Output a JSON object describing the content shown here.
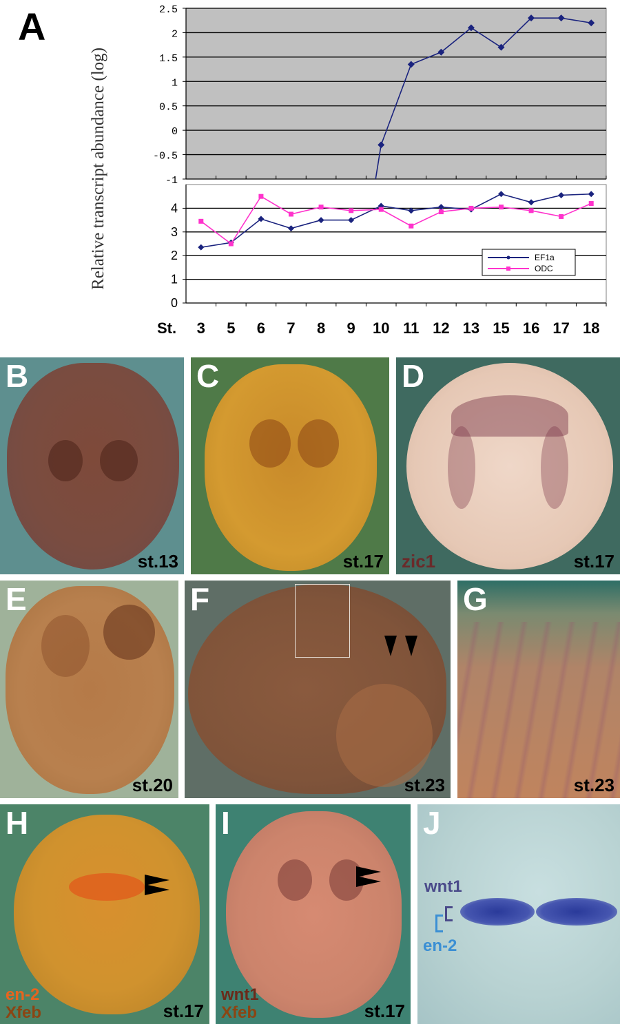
{
  "panel_a": {
    "label": "A",
    "ylabel": "Relative transcript abundance (log)",
    "x_prefix": "St.",
    "upper_ticks": [
      "2.5",
      "2",
      "1.5",
      "1",
      "0.5",
      "0",
      "-0.5",
      "-1"
    ],
    "lower_ticks": [
      "4",
      "3",
      "2",
      "1",
      "0"
    ]
  },
  "chart_data": {
    "type": "line",
    "xlabel": "St.",
    "ylabel": "Relative transcript abundance (log)",
    "categories": [
      "3",
      "5",
      "6",
      "7",
      "8",
      "9",
      "10",
      "11",
      "12",
      "13",
      "15",
      "16",
      "17",
      "18"
    ],
    "upper_ylim": [
      -1,
      2.5
    ],
    "lower_ylim": [
      0,
      5
    ],
    "upper_series": {
      "name": "",
      "values": [
        null,
        null,
        null,
        null,
        null,
        null,
        -0.3,
        1.35,
        1.6,
        2.1,
        1.7,
        2.3,
        2.3,
        2.2
      ]
    },
    "series": [
      {
        "name": "EF1a",
        "color": "#1a237e",
        "values": [
          2.35,
          2.55,
          3.55,
          3.15,
          3.5,
          3.5,
          4.1,
          3.9,
          4.05,
          3.95,
          4.6,
          4.25,
          4.55,
          4.6
        ]
      },
      {
        "name": "ODC",
        "color": "#ff33cc",
        "values": [
          3.45,
          2.5,
          4.5,
          3.75,
          4.05,
          3.9,
          3.95,
          3.25,
          3.85,
          4.0,
          4.05,
          3.9,
          3.65,
          4.2
        ]
      }
    ],
    "grid": true,
    "legend_position": "bottom-right"
  },
  "panels": {
    "b": {
      "label": "B",
      "stage": "st.13"
    },
    "c": {
      "label": "C",
      "stage": "st.17"
    },
    "d": {
      "label": "D",
      "stage": "st.17",
      "probe": "zic1"
    },
    "e": {
      "label": "E",
      "stage": "st.20"
    },
    "f": {
      "label": "F",
      "stage": "st.23"
    },
    "g": {
      "label": "G",
      "stage": "st.23"
    },
    "h": {
      "label": "H",
      "stage": "st.17",
      "probe1": "en-2",
      "probe2": "Xfeb"
    },
    "i": {
      "label": "I",
      "stage": "st.17",
      "probe1": "wnt1",
      "probe2": "Xfeb"
    },
    "j": {
      "label": "J",
      "probe1": "wnt1",
      "probe2": "en-2"
    }
  },
  "colors": {
    "plot_bg": "#c0c0c0",
    "ef1a": "#1a237e",
    "odc": "#ff33cc",
    "en2_orange": "#e8641e",
    "xfeb_brown": "#8b4513",
    "wnt1_purple": "#4a4a8a",
    "en2_blue": "#3b8fd4"
  }
}
